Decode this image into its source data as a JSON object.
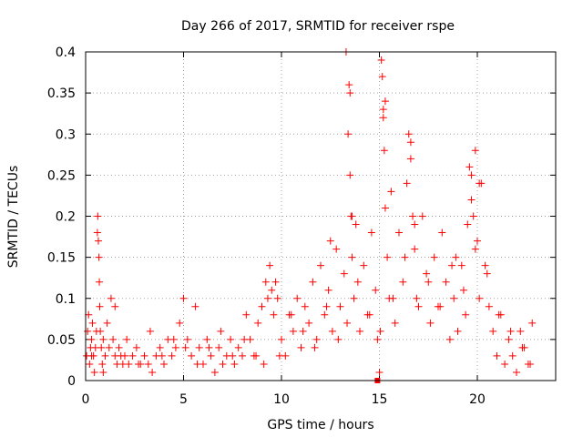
{
  "chart_data": {
    "type": "scatter",
    "title": "Day 266 of 2017, SRMTID for receiver rspe",
    "xlabel": "GPS time / hours",
    "ylabel": "SRMTID / TECUs",
    "xlim": [
      0,
      24
    ],
    "ylim": [
      0,
      0.4
    ],
    "xticks": [
      "0",
      "5",
      "10",
      "15",
      "20"
    ],
    "yticks": [
      "0",
      "0.05",
      "0.1",
      "0.15",
      "0.2",
      "0.25",
      "0.3",
      "0.35",
      "0.4"
    ],
    "grid": true,
    "marker": "plus",
    "color": "#ff0000",
    "series": [
      {
        "name": "SRMTID",
        "x": [
          0.05,
          0.1,
          0.15,
          0.2,
          0.25,
          0.3,
          0.35,
          0.4,
          0.45,
          0.5,
          0.55,
          0.6,
          0.62,
          0.65,
          0.68,
          0.7,
          0.72,
          0.75,
          0.8,
          0.85,
          0.9,
          1.0,
          1.1,
          1.2,
          1.3,
          1.4,
          1.5,
          1.6,
          1.7,
          1.8,
          1.9,
          2.0,
          2.2,
          2.4,
          2.6,
          2.8,
          3.0,
          3.2,
          3.4,
          3.6,
          3.8,
          4.0,
          4.2,
          4.4,
          4.6,
          4.8,
          5.0,
          5.2,
          5.4,
          5.6,
          5.8,
          6.0,
          6.2,
          6.4,
          6.6,
          6.8,
          7.0,
          7.2,
          7.4,
          7.6,
          7.8,
          8.0,
          8.2,
          8.4,
          8.6,
          8.8,
          9.0,
          9.2,
          9.3,
          9.4,
          9.5,
          9.6,
          9.7,
          9.8,
          10.0,
          10.2,
          10.4,
          10.6,
          10.8,
          11.0,
          11.2,
          11.4,
          11.6,
          11.8,
          12.0,
          12.2,
          12.4,
          12.6,
          12.8,
          13.0,
          13.2,
          13.3,
          13.4,
          13.45,
          13.5,
          13.55,
          13.6,
          13.7,
          13.8,
          14.0,
          14.2,
          14.4,
          14.6,
          14.8,
          14.9,
          15.0,
          15.1,
          15.15,
          15.2,
          15.25,
          15.3,
          15.4,
          15.5,
          15.6,
          15.8,
          16.0,
          16.2,
          16.4,
          16.5,
          16.6,
          16.7,
          16.8,
          17.0,
          17.2,
          17.4,
          17.6,
          17.8,
          18.0,
          18.2,
          18.4,
          18.6,
          18.8,
          19.0,
          19.2,
          19.4,
          19.5,
          19.6,
          19.7,
          19.8,
          19.9,
          20.0,
          20.1,
          20.2,
          20.4,
          20.6,
          20.8,
          21.0,
          21.2,
          21.4,
          21.6,
          21.8,
          22.0,
          22.2,
          22.4,
          22.6,
          22.8,
          0.3,
          0.9,
          1.5,
          2.1,
          2.7,
          3.3,
          3.9,
          4.5,
          5.1,
          5.7,
          6.3,
          6.9,
          7.5,
          8.1,
          8.7,
          9.1,
          9.9,
          10.5,
          11.1,
          11.7,
          12.3,
          12.9,
          13.35,
          13.9,
          14.5,
          15.05,
          15.7,
          16.3,
          16.9,
          17.5,
          18.1,
          18.7,
          19.3,
          19.9,
          20.5,
          21.1,
          21.7,
          22.3,
          22.7,
          13.5,
          15.2,
          16.6,
          19.7,
          20.1,
          15.3,
          13.6,
          16.8,
          18.9,
          12.5
        ],
        "y": [
          0.03,
          0.06,
          0.08,
          0.02,
          0.04,
          0.05,
          0.07,
          0.03,
          0.01,
          0.04,
          0.06,
          0.18,
          0.2,
          0.17,
          0.15,
          0.12,
          0.09,
          0.06,
          0.04,
          0.02,
          0.05,
          0.03,
          0.07,
          0.04,
          0.1,
          0.05,
          0.03,
          0.02,
          0.04,
          0.03,
          0.02,
          0.03,
          0.02,
          0.03,
          0.04,
          0.02,
          0.03,
          0.02,
          0.01,
          0.03,
          0.04,
          0.02,
          0.05,
          0.03,
          0.04,
          0.07,
          0.1,
          0.05,
          0.03,
          0.09,
          0.04,
          0.02,
          0.05,
          0.03,
          0.01,
          0.04,
          0.02,
          0.03,
          0.05,
          0.02,
          0.04,
          0.03,
          0.08,
          0.05,
          0.03,
          0.07,
          0.09,
          0.12,
          0.1,
          0.14,
          0.11,
          0.08,
          0.12,
          0.1,
          0.05,
          0.03,
          0.08,
          0.06,
          0.1,
          0.04,
          0.09,
          0.07,
          0.12,
          0.05,
          0.14,
          0.08,
          0.11,
          0.06,
          0.16,
          0.09,
          0.13,
          0.4,
          0.3,
          0.36,
          0.25,
          0.2,
          0.15,
          0.1,
          0.19,
          0.06,
          0.14,
          0.08,
          0.18,
          0.11,
          0.05,
          0.01,
          0.39,
          0.37,
          0.33,
          0.28,
          0.21,
          0.15,
          0.1,
          0.23,
          0.07,
          0.18,
          0.12,
          0.24,
          0.3,
          0.27,
          0.2,
          0.16,
          0.09,
          0.2,
          0.13,
          0.07,
          0.15,
          0.09,
          0.18,
          0.12,
          0.05,
          0.1,
          0.06,
          0.14,
          0.08,
          0.19,
          0.26,
          0.22,
          0.2,
          0.28,
          0.17,
          0.1,
          0.24,
          0.14,
          0.09,
          0.06,
          0.03,
          0.08,
          0.02,
          0.05,
          0.03,
          0.01,
          0.06,
          0.04,
          0.02,
          0.07,
          0.03,
          0.01,
          0.09,
          0.05,
          0.02,
          0.06,
          0.03,
          0.05,
          0.04,
          0.02,
          0.04,
          0.06,
          0.03,
          0.05,
          0.03,
          0.02,
          0.03,
          0.08,
          0.06,
          0.04,
          0.09,
          0.05,
          0.07,
          0.12,
          0.08,
          0.06,
          0.1,
          0.15,
          0.1,
          0.12,
          0.09,
          0.14,
          0.11,
          0.16,
          0.13,
          0.08,
          0.06,
          0.04,
          0.02,
          0.35,
          0.32,
          0.29,
          0.25,
          0.24,
          0.34,
          0.2,
          0.19,
          0.15,
          0.17
        ]
      }
    ],
    "extra_marks": [
      {
        "x": 14.9,
        "y": 0.0,
        "shape": "square"
      }
    ]
  }
}
